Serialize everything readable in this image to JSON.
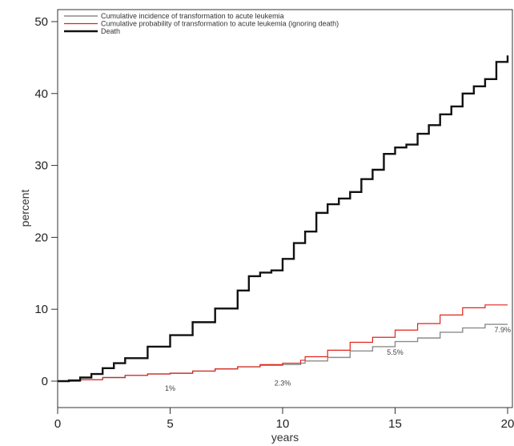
{
  "chart_data": {
    "type": "line",
    "xlabel": "years",
    "ylabel": "percent",
    "xlim": [
      0,
      20
    ],
    "ylim": [
      0,
      50
    ],
    "xticks": [
      0,
      5,
      10,
      15,
      20
    ],
    "yticks": [
      0,
      10,
      20,
      30,
      40,
      50
    ],
    "legend_position": "top-left",
    "grid": false,
    "series": [
      {
        "name": "Cumulative incidence of transformation to acute leukemia",
        "color": "#8c8c8c",
        "points": [
          [
            0,
            0
          ],
          [
            1,
            0.2
          ],
          [
            2,
            0.5
          ],
          [
            3,
            0.8
          ],
          [
            4,
            1.0
          ],
          [
            5,
            1.1
          ],
          [
            6,
            1.4
          ],
          [
            7,
            1.7
          ],
          [
            8,
            2.0
          ],
          [
            9,
            2.2
          ],
          [
            10,
            2.3
          ],
          [
            10.8,
            2.5
          ],
          [
            11,
            2.8
          ],
          [
            12,
            3.3
          ],
          [
            13,
            4.2
          ],
          [
            14,
            4.8
          ],
          [
            15,
            5.5
          ],
          [
            16,
            6.0
          ],
          [
            17,
            6.8
          ],
          [
            18,
            7.4
          ],
          [
            19,
            7.9
          ],
          [
            20,
            7.9
          ]
        ]
      },
      {
        "name": "Cumulative probability of transformation to acute leukemia (ignoring death)",
        "color": "#e0241c",
        "points": [
          [
            0,
            0
          ],
          [
            1,
            0.2
          ],
          [
            2,
            0.5
          ],
          [
            3,
            0.8
          ],
          [
            4,
            1.0
          ],
          [
            5,
            1.1
          ],
          [
            6,
            1.4
          ],
          [
            7,
            1.7
          ],
          [
            8,
            2.0
          ],
          [
            9,
            2.3
          ],
          [
            10,
            2.5
          ],
          [
            10.8,
            2.9
          ],
          [
            11,
            3.4
          ],
          [
            12,
            4.3
          ],
          [
            13,
            5.4
          ],
          [
            14,
            6.1
          ],
          [
            15,
            7.1
          ],
          [
            16,
            8.0
          ],
          [
            17,
            9.2
          ],
          [
            18,
            10.2
          ],
          [
            19,
            10.6
          ],
          [
            20,
            10.6
          ]
        ]
      },
      {
        "name": "Death",
        "color": "#111111",
        "points": [
          [
            0,
            0
          ],
          [
            0.5,
            0.1
          ],
          [
            1,
            0.5
          ],
          [
            1.5,
            1.0
          ],
          [
            2,
            1.8
          ],
          [
            2.5,
            2.5
          ],
          [
            3,
            3.2
          ],
          [
            4,
            4.8
          ],
          [
            5,
            6.4
          ],
          [
            6,
            8.2
          ],
          [
            7,
            10.1
          ],
          [
            8,
            12.6
          ],
          [
            8.5,
            14.6
          ],
          [
            9,
            15.1
          ],
          [
            9.5,
            15.4
          ],
          [
            10,
            17.0
          ],
          [
            10.5,
            19.2
          ],
          [
            11,
            20.8
          ],
          [
            11.5,
            23.4
          ],
          [
            12,
            24.6
          ],
          [
            12.5,
            25.4
          ],
          [
            13,
            26.3
          ],
          [
            13.5,
            28.1
          ],
          [
            14,
            29.4
          ],
          [
            14.5,
            31.6
          ],
          [
            15,
            32.5
          ],
          [
            15.5,
            32.9
          ],
          [
            16,
            34.4
          ],
          [
            16.5,
            35.6
          ],
          [
            17,
            37.1
          ],
          [
            17.5,
            38.2
          ],
          [
            18,
            40.0
          ],
          [
            18.5,
            41.0
          ],
          [
            19,
            42.0
          ],
          [
            19.5,
            44.4
          ],
          [
            20,
            45.3
          ]
        ]
      }
    ],
    "annotations": [
      {
        "text": "1%",
        "x": 5,
        "y": -1.0
      },
      {
        "text": "2.3%",
        "x": 10,
        "y": -0.3
      },
      {
        "text": "5.5%",
        "x": 15,
        "y": 4.0
      },
      {
        "text": "7.9%",
        "x": 20.0,
        "y": 7.1
      }
    ]
  }
}
